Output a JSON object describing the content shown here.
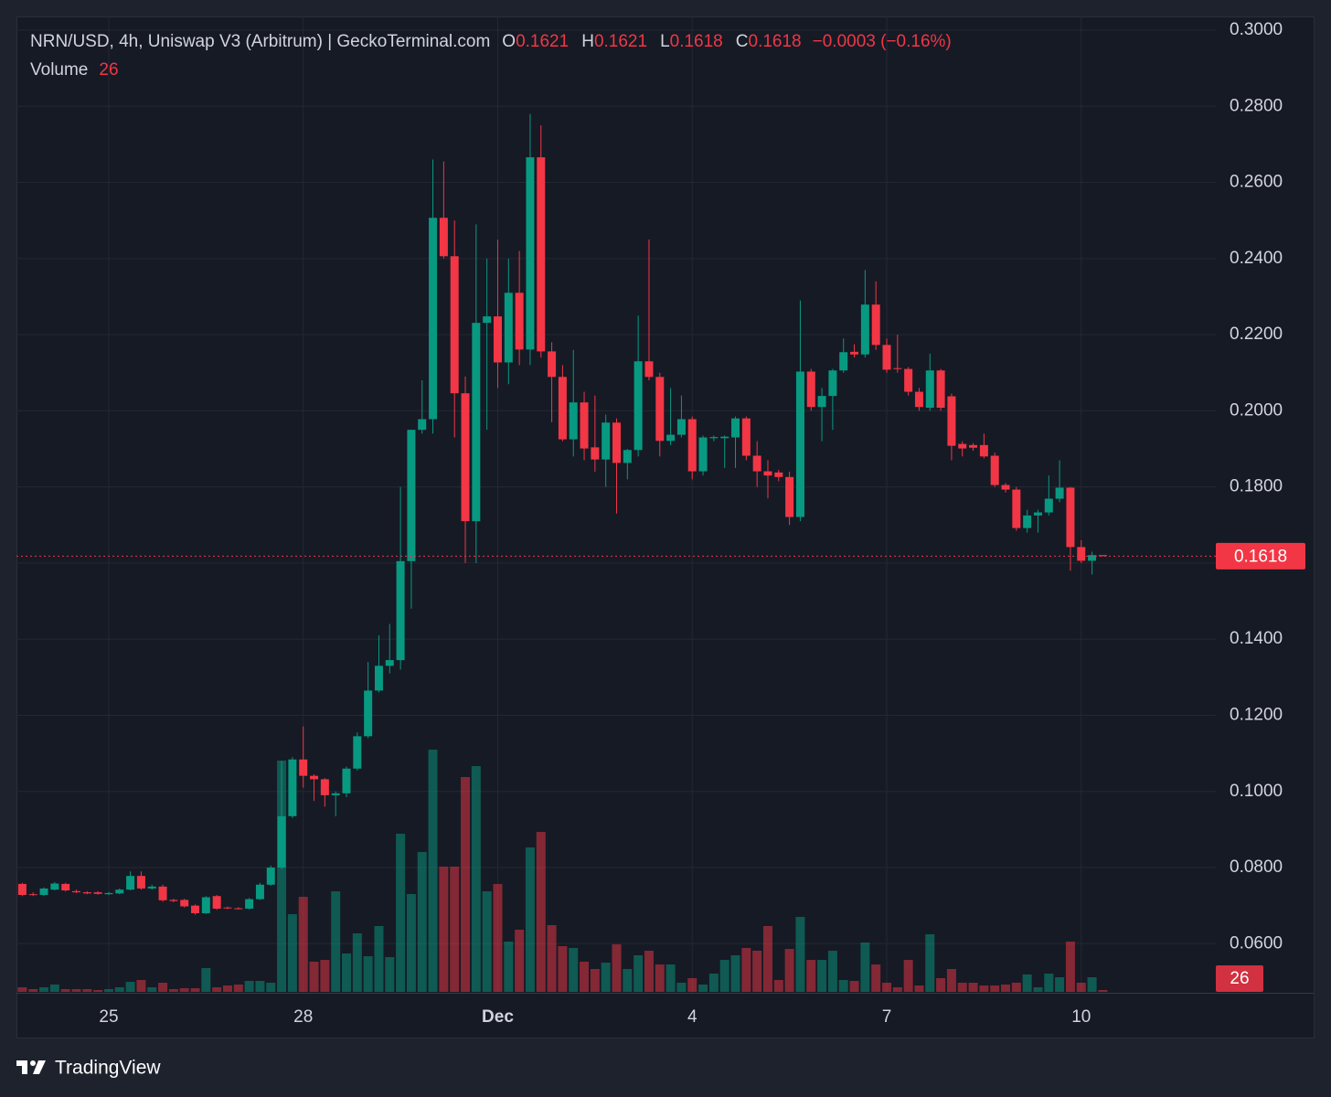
{
  "chart_data": {
    "type": "candlestick",
    "title": "NRN/USD, 4h, Uniswap V3 (Arbitrum) | GeckoTerminal.com",
    "open_label": "O",
    "high_label": "H",
    "low_label": "L",
    "close_label": "C",
    "change": "−0.0003 (−0.16%)",
    "volume_label": "Volume",
    "categories": [
      null,
      null,
      null,
      null,
      null,
      null,
      null,
      null,
      "25",
      null,
      null,
      null,
      null,
      null,
      null,
      null,
      null,
      null,
      null,
      null,
      null,
      null,
      null,
      null,
      null,
      null,
      "28",
      null,
      null,
      null,
      null,
      null,
      null,
      null,
      null,
      null,
      null,
      null,
      null,
      null,
      null,
      null,
      null,
      null,
      "Dec",
      null,
      null,
      null,
      null,
      null,
      null,
      null,
      null,
      null,
      null,
      null,
      null,
      null,
      null,
      null,
      null,
      null,
      "4",
      null,
      null,
      null,
      null,
      null,
      null,
      null,
      null,
      null,
      null,
      null,
      null,
      null,
      null,
      null,
      null,
      null,
      "7",
      null,
      null,
      null,
      null,
      null,
      null,
      null,
      null,
      null,
      null,
      null,
      null,
      null,
      null,
      null,
      null,
      null,
      "10",
      null,
      null
    ],
    "open": [
      0.0757,
      0.073,
      0.0728,
      0.0742,
      0.0757,
      0.0738,
      0.0735,
      0.0735,
      0.073,
      0.0732,
      0.0742,
      0.0778,
      0.0745,
      0.075,
      0.0715,
      0.0715,
      0.07,
      0.068,
      0.0725,
      0.0695,
      0.0693,
      0.0692,
      0.0717,
      0.0755,
      0.08,
      0.0935,
      0.1084,
      0.1041,
      0.1032,
      0.099,
      0.0995,
      0.106,
      0.1145,
      0.1265,
      0.133,
      0.1345,
      0.1605,
      0.195,
      0.1978,
      0.2507,
      0.2406,
      0.2046,
      0.171,
      0.2231,
      0.2248,
      0.2127,
      0.231,
      0.2161,
      0.2666,
      0.2156,
      0.2089,
      0.1925,
      0.2022,
      0.1904,
      0.1872,
      0.1969,
      0.1863,
      0.1897,
      0.213,
      0.2089,
      0.1921,
      0.1937,
      0.1978,
      0.1841,
      0.1928,
      0.1928,
      0.193,
      0.198,
      0.1882,
      0.1841,
      0.1838,
      0.1826,
      0.1721,
      0.2103,
      0.201,
      0.2039,
      0.2106,
      0.2155,
      0.2148,
      0.2279,
      0.2173,
      0.2112,
      0.211,
      0.205,
      0.2008,
      0.2106,
      0.2038,
      0.1913,
      0.191,
      0.191,
      0.1882,
      0.1805,
      0.1793,
      0.1692,
      0.1725,
      0.1733,
      0.1769,
      0.1798,
      0.1642,
      0.1606,
      0.1621
    ],
    "high": [
      0.076,
      0.0735,
      0.0748,
      0.0762,
      0.076,
      0.0742,
      0.0738,
      0.0738,
      0.0736,
      0.0745,
      0.079,
      0.079,
      0.0755,
      0.0755,
      0.0718,
      0.0718,
      0.0703,
      0.0725,
      0.0728,
      0.0698,
      0.0696,
      0.072,
      0.076,
      0.0805,
      0.108,
      0.109,
      0.1171,
      0.1045,
      0.1035,
      0.1,
      0.1065,
      0.1155,
      0.134,
      0.141,
      0.144,
      0.18,
      0.195,
      0.208,
      0.266,
      0.2655,
      0.25,
      0.209,
      0.249,
      0.24,
      0.245,
      0.24,
      0.242,
      0.278,
      0.275,
      0.218,
      0.212,
      0.216,
      0.205,
      0.204,
      0.199,
      0.198,
      0.19,
      0.225,
      0.245,
      0.21,
      0.206,
      0.204,
      0.1985,
      0.1935,
      0.1935,
      0.1935,
      0.1985,
      0.1985,
      0.192,
      0.187,
      0.1845,
      0.184,
      0.229,
      0.211,
      0.206,
      0.211,
      0.219,
      0.2175,
      0.237,
      0.234,
      0.219,
      0.22,
      0.2115,
      0.206,
      0.215,
      0.211,
      0.2045,
      0.192,
      0.1915,
      0.194,
      0.189,
      0.181,
      0.18,
      0.174,
      0.174,
      0.183,
      0.187,
      0.18,
      0.166,
      0.163,
      0.1621
    ],
    "low": [
      0.0725,
      0.0725,
      0.0725,
      0.074,
      0.0737,
      0.0733,
      0.073,
      0.0729,
      0.0728,
      0.073,
      0.074,
      0.0742,
      0.0742,
      0.071,
      0.0709,
      0.0695,
      0.0676,
      0.0678,
      0.0689,
      0.0691,
      0.069,
      0.069,
      0.0715,
      0.0752,
      0.0795,
      0.093,
      0.101,
      0.0975,
      0.096,
      0.0935,
      0.0985,
      0.1055,
      0.114,
      0.126,
      0.131,
      0.132,
      0.148,
      0.194,
      0.194,
      0.24,
      0.193,
      0.16,
      0.16,
      0.195,
      0.206,
      0.207,
      0.212,
      0.212,
      0.214,
      0.197,
      0.192,
      0.188,
      0.187,
      0.184,
      0.18,
      0.173,
      0.182,
      0.188,
      0.208,
      0.188,
      0.191,
      0.193,
      0.182,
      0.183,
      0.192,
      0.185,
      0.185,
      0.187,
      0.18,
      0.177,
      0.1815,
      0.17,
      0.171,
      0.2,
      0.192,
      0.195,
      0.21,
      0.214,
      0.214,
      0.216,
      0.21,
      0.21,
      0.204,
      0.2,
      0.2,
      0.2,
      0.187,
      0.188,
      0.1895,
      0.1875,
      0.18,
      0.1785,
      0.1685,
      0.168,
      0.168,
      0.1725,
      0.176,
      0.158,
      0.16,
      0.157,
      0.1618
    ],
    "close": [
      0.0728,
      0.0728,
      0.0745,
      0.0758,
      0.074,
      0.0735,
      0.0732,
      0.0731,
      0.0733,
      0.0742,
      0.0778,
      0.0745,
      0.075,
      0.0714,
      0.0712,
      0.0698,
      0.068,
      0.0722,
      0.0692,
      0.0694,
      0.0692,
      0.0717,
      0.0755,
      0.08,
      0.0935,
      0.1084,
      0.1041,
      0.1032,
      0.099,
      0.0995,
      0.106,
      0.1145,
      0.1265,
      0.133,
      0.1345,
      0.1605,
      0.195,
      0.1978,
      0.2507,
      0.2406,
      0.2046,
      0.171,
      0.2231,
      0.2248,
      0.2127,
      0.231,
      0.2161,
      0.2666,
      0.2156,
      0.2089,
      0.1925,
      0.2022,
      0.1901,
      0.1872,
      0.1969,
      0.1863,
      0.1897,
      0.213,
      0.2089,
      0.1921,
      0.1937,
      0.1978,
      0.1841,
      0.193,
      0.1931,
      0.1932,
      0.198,
      0.1882,
      0.1841,
      0.183,
      0.1826,
      0.1721,
      0.2103,
      0.201,
      0.2039,
      0.2106,
      0.2154,
      0.2148,
      0.2279,
      0.2173,
      0.2108,
      0.211,
      0.205,
      0.201,
      0.2106,
      0.2008,
      0.1908,
      0.1901,
      0.1903,
      0.188,
      0.1805,
      0.1793,
      0.1692,
      0.1725,
      0.1733,
      0.1769,
      0.1798,
      0.1642,
      0.1606,
      0.1621,
      0.1618
    ],
    "volume": [
      65,
      39,
      65,
      104,
      39,
      39,
      39,
      26,
      39,
      65,
      143,
      169,
      65,
      130,
      39,
      52,
      52,
      338,
      65,
      91,
      104,
      156,
      156,
      130,
      3289,
      1105,
      1352,
      429,
      455,
      1430,
      546,
      832,
      507,
      936,
      494,
      2249,
      1391,
      1989,
      3445,
      1781,
      1781,
      3055,
      3211,
      1430,
      1534,
      715,
      884,
      2054,
      2275,
      949,
      650,
      624,
      429,
      325,
      416,
      676,
      325,
      520,
      585,
      390,
      390,
      130,
      195,
      104,
      260,
      455,
      520,
      624,
      585,
      936,
      169,
      611,
      1066,
      455,
      455,
      585,
      169,
      156,
      702,
      390,
      130,
      65,
      455,
      91,
      819,
      195,
      325,
      130,
      130,
      91,
      91,
      104,
      130,
      247,
      65,
      260,
      208,
      715,
      130,
      208,
      26
    ],
    "ylim": [
      0.0471,
      0.3036
    ],
    "yticks": [
      {
        "value": 0.06,
        "label": "0.0600"
      },
      {
        "value": 0.08,
        "label": "0.0800"
      },
      {
        "value": 0.1,
        "label": "0.1000"
      },
      {
        "value": 0.12,
        "label": "0.1200"
      },
      {
        "value": 0.14,
        "label": "0.1400"
      },
      {
        "value": 0.16,
        "label": "0.1600"
      },
      {
        "value": 0.18,
        "label": "0.1800"
      },
      {
        "value": 0.2,
        "label": "0.2000"
      },
      {
        "value": 0.22,
        "label": "0.2200"
      },
      {
        "value": 0.24,
        "label": "0.2400"
      },
      {
        "value": 0.26,
        "label": "0.2600"
      },
      {
        "value": 0.28,
        "label": "0.2800"
      },
      {
        "value": 0.3,
        "label": "0.3000"
      }
    ],
    "grid": true,
    "up_color": "#089981",
    "down_color": "#f23645"
  },
  "brand": "TradingView"
}
